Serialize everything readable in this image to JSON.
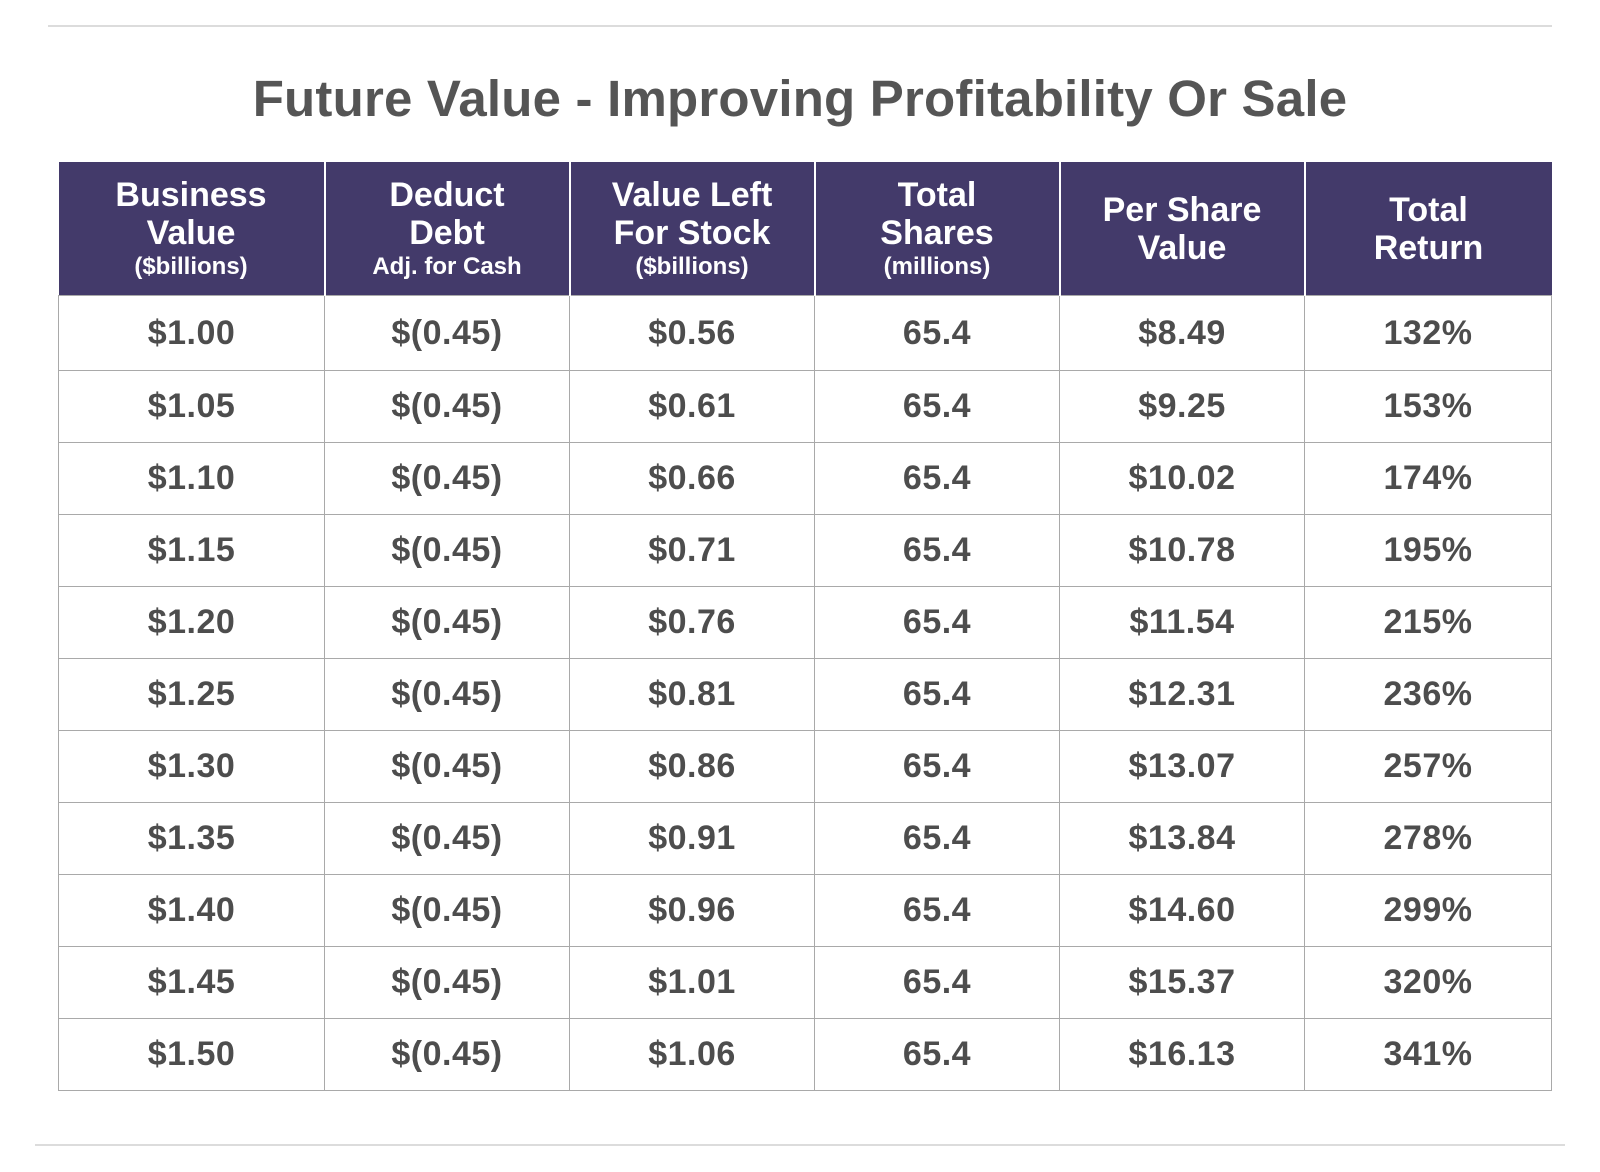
{
  "chart_data": {
    "type": "table",
    "title": "Future Value - Improving Profitability Or Sale",
    "columns": [
      {
        "main_line1": "Business",
        "main_line2": "Value",
        "sub": "($billions)"
      },
      {
        "main_line1": "Deduct",
        "main_line2": "Debt",
        "sub": "Adj. for Cash"
      },
      {
        "main_line1": "Value Left",
        "main_line2": "For Stock",
        "sub": "($billions)"
      },
      {
        "main_line1": "Total",
        "main_line2": "Shares",
        "sub": "(millions)"
      },
      {
        "main_line1": "Per Share",
        "main_line2": "Value",
        "sub": ""
      },
      {
        "main_line1": "Total",
        "main_line2": "Return",
        "sub": ""
      }
    ],
    "rows": [
      [
        "$1.00",
        "$(0.45)",
        "$0.56",
        "65.4",
        "$8.49",
        "132%"
      ],
      [
        "$1.05",
        "$(0.45)",
        "$0.61",
        "65.4",
        "$9.25",
        "153%"
      ],
      [
        "$1.10",
        "$(0.45)",
        "$0.66",
        "65.4",
        "$10.02",
        "174%"
      ],
      [
        "$1.15",
        "$(0.45)",
        "$0.71",
        "65.4",
        "$10.78",
        "195%"
      ],
      [
        "$1.20",
        "$(0.45)",
        "$0.76",
        "65.4",
        "$11.54",
        "215%"
      ],
      [
        "$1.25",
        "$(0.45)",
        "$0.81",
        "65.4",
        "$12.31",
        "236%"
      ],
      [
        "$1.30",
        "$(0.45)",
        "$0.86",
        "65.4",
        "$13.07",
        "257%"
      ],
      [
        "$1.35",
        "$(0.45)",
        "$0.91",
        "65.4",
        "$13.84",
        "278%"
      ],
      [
        "$1.40",
        "$(0.45)",
        "$0.96",
        "65.4",
        "$14.60",
        "299%"
      ],
      [
        "$1.45",
        "$(0.45)",
        "$1.01",
        "65.4",
        "$15.37",
        "320%"
      ],
      [
        "$1.50",
        "$(0.45)",
        "$1.06",
        "65.4",
        "$16.13",
        "341%"
      ]
    ]
  },
  "colors": {
    "header_background": "#433a6a",
    "header_text": "#ffffff",
    "cell_text": "#4d4d4d",
    "title_text": "#555555",
    "grid_line": "#a9a9a9"
  }
}
